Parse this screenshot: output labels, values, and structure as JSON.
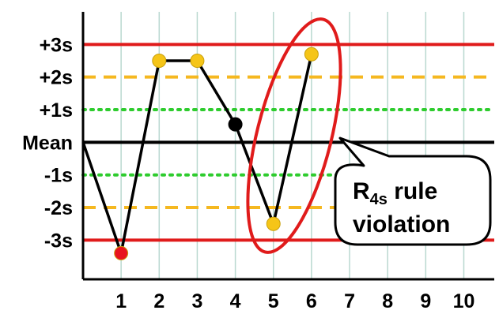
{
  "chart_data": {
    "type": "line",
    "x": [
      0,
      1,
      2,
      3,
      4,
      5,
      6
    ],
    "y": [
      0,
      -3.4,
      2.5,
      2.5,
      0.55,
      -2.5,
      2.7
    ],
    "point_colors": [
      "none",
      "#e8141e",
      "#f5c518",
      "#f5c518",
      "#000000",
      "#f5c518",
      "#f5c518"
    ],
    "xlim": [
      0,
      10.8
    ],
    "ylim": [
      -4.2,
      4.0
    ],
    "x_ticks": [
      1,
      2,
      3,
      4,
      5,
      6,
      7,
      8,
      9,
      10
    ],
    "x_tick_labels": [
      "1",
      "2",
      "3",
      "4",
      "5",
      "6",
      "7",
      "8",
      "9",
      "10"
    ],
    "y_ticks": [
      3,
      2,
      1,
      0,
      -1,
      -2,
      -3
    ],
    "y_tick_labels": [
      "+3s",
      "+2s",
      "+1s",
      "Mean",
      "-1s",
      "-2s",
      "-3s"
    ],
    "reference_lines": [
      {
        "y": 3,
        "color": "#e01b1b",
        "style": "solid"
      },
      {
        "y": 2,
        "color": "#f5b820",
        "style": "dashed"
      },
      {
        "y": 1,
        "color": "#2ecc2e",
        "style": "dotted"
      },
      {
        "y": 0,
        "color": "#000000",
        "style": "solid"
      },
      {
        "y": -1,
        "color": "#2ecc2e",
        "style": "dotted"
      },
      {
        "y": -2,
        "color": "#f5b820",
        "style": "dashed"
      },
      {
        "y": -3,
        "color": "#e01b1b",
        "style": "solid"
      }
    ],
    "vertical_grid": true,
    "grid_color": "#b9d8d0",
    "highlight_ellipse_color": "#e01b1b",
    "annotation": {
      "main": "R",
      "subscript": "4s",
      "line1_rest": " rule",
      "line2": "violation"
    }
  }
}
